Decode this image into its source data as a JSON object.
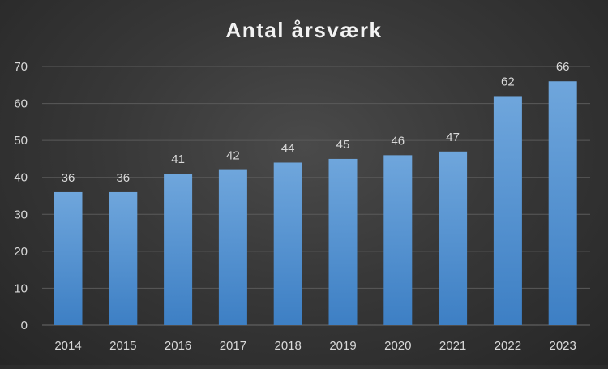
{
  "chart_data": {
    "type": "bar",
    "title": "Antal årsværk",
    "xlabel": "",
    "ylabel": "",
    "categories": [
      "2014",
      "2015",
      "2016",
      "2017",
      "2018",
      "2019",
      "2020",
      "2021",
      "2022",
      "2023"
    ],
    "values": [
      36,
      36,
      41,
      42,
      44,
      45,
      46,
      47,
      62,
      66
    ],
    "data_labels": [
      "36",
      "36",
      "41",
      "42",
      "44",
      "45",
      "46",
      "47",
      "62",
      "66"
    ],
    "ylim": [
      0,
      70
    ],
    "yticks": [
      "0",
      "10",
      "20",
      "30",
      "40",
      "50",
      "60",
      "70"
    ],
    "grid": true,
    "legend": "none",
    "colors": {
      "bar_top": "#6fa6dc",
      "bar_bottom": "#3d7fc4",
      "text": "#d9d9d9",
      "title": "#f2f2f2",
      "grid": "#5a5a5a",
      "background": "#3a3a3a"
    }
  }
}
